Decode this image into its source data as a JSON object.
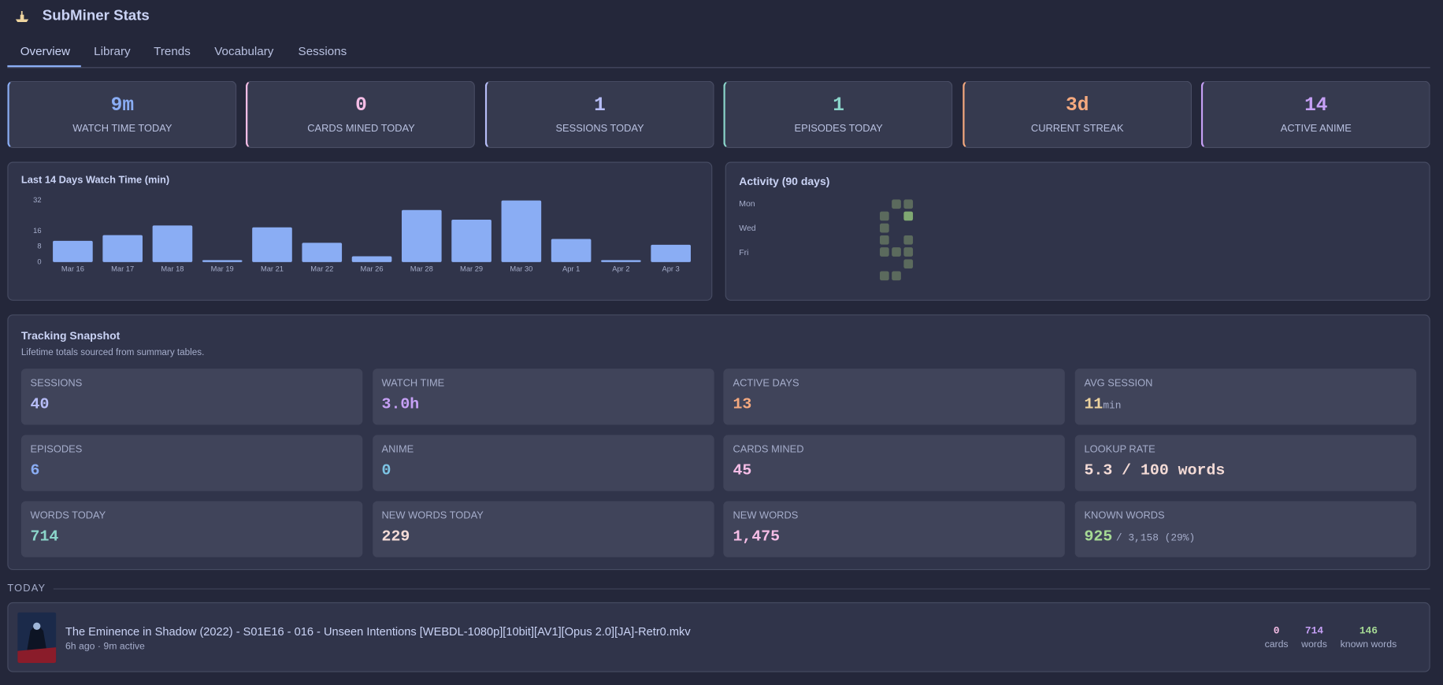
{
  "app": {
    "title": "SubMiner Stats"
  },
  "tabs": [
    "Overview",
    "Library",
    "Trends",
    "Vocabulary",
    "Sessions"
  ],
  "stat_cards": [
    {
      "value": "9m",
      "label": "WATCH TIME TODAY",
      "color": "#8aadf4"
    },
    {
      "value": "0",
      "label": "CARDS MINED TODAY",
      "color": "#f5bde6"
    },
    {
      "value": "1",
      "label": "SESSIONS TODAY",
      "color": "#b7bdf8"
    },
    {
      "value": "1",
      "label": "EPISODES TODAY",
      "color": "#8bd5ca"
    },
    {
      "value": "3d",
      "label": "CURRENT STREAK",
      "color": "#f5a97f"
    },
    {
      "value": "14",
      "label": "ACTIVE ANIME",
      "color": "#c6a0f6"
    }
  ],
  "chart_data": {
    "type": "bar",
    "title": "Last 14 Days Watch Time (min)",
    "categories": [
      "Mar 16",
      "Mar 17",
      "Mar 18",
      "Mar 19",
      "Mar 21",
      "Mar 22",
      "Mar 26",
      "Mar 28",
      "Mar 29",
      "Mar 30",
      "Apr 1",
      "Apr 2",
      "Apr 3"
    ],
    "values": [
      11,
      14,
      19,
      1,
      18,
      10,
      3,
      27,
      22,
      32,
      12,
      1,
      9
    ],
    "color": "#8aadf4",
    "ylim": [
      0,
      32
    ],
    "yticks": [
      0,
      8,
      16,
      32
    ]
  },
  "activity": {
    "title": "Activity (90 days)",
    "day_labels": [
      "Mon",
      "Wed",
      "Fri"
    ],
    "colors": [
      "#5b6a5d",
      "#7fa872"
    ],
    "weeks": [
      [
        null,
        1,
        1,
        1,
        1,
        null,
        1
      ],
      [
        1,
        null,
        null,
        null,
        1,
        null,
        1
      ],
      [
        1,
        2,
        null,
        1,
        1,
        1,
        null
      ]
    ]
  },
  "snapshot": {
    "title": "Tracking Snapshot",
    "subtitle": "Lifetime totals sourced from summary tables.",
    "items": [
      {
        "label": "SESSIONS",
        "value": "40",
        "color": "#b7bdf8"
      },
      {
        "label": "WATCH TIME",
        "value": "3.0h",
        "color": "#c6a0f6"
      },
      {
        "label": "ACTIVE DAYS",
        "value": "13",
        "color": "#f5a97f"
      },
      {
        "label": "AVG SESSION",
        "value": "11",
        "unit": "min",
        "color": "#eed49f"
      },
      {
        "label": "EPISODES",
        "value": "6",
        "color": "#8aadf4"
      },
      {
        "label": "ANIME",
        "value": "0",
        "color": "#7dc4e4"
      },
      {
        "label": "CARDS MINED",
        "value": "45",
        "color": "#f5bde6"
      },
      {
        "label": "LOOKUP RATE",
        "value": "5.3 / 100 words",
        "color": "#f4dbd6"
      },
      {
        "label": "WORDS TODAY",
        "value": "714",
        "color": "#8bd5ca"
      },
      {
        "label": "NEW WORDS TODAY",
        "value": "229",
        "color": "#f4dbd6"
      },
      {
        "label": "NEW WORDS",
        "value": "1,475",
        "color": "#f5bde6"
      },
      {
        "label": "KNOWN WORDS",
        "value": "925",
        "detail": "/ 3,158 (29%)",
        "color": "#a6da95"
      }
    ]
  },
  "today": {
    "heading": "TODAY",
    "sessions": [
      {
        "title": "The Eminence in Shadow (2022) - S01E16 - 016 - Unseen Intentions [WEBDL-1080p][10bit][AV1][Opus 2.0][JA]-Retr0.mkv",
        "meta": "6h ago · 9m active",
        "stats": [
          {
            "value": "0",
            "label": "cards",
            "color": "#f5bde6"
          },
          {
            "value": "714",
            "label": "words",
            "color": "#c6a0f6"
          },
          {
            "value": "146",
            "label": "known words",
            "color": "#a6da95"
          }
        ]
      }
    ]
  }
}
